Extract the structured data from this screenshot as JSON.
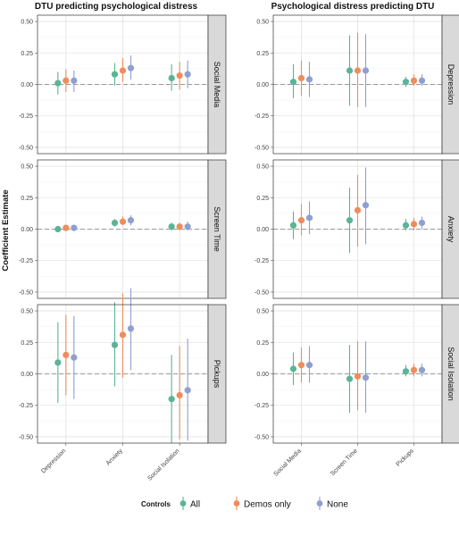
{
  "figure": {
    "y_axis_label": "Coefficient Estimate",
    "legend": {
      "title": "Controls",
      "entries": [
        {
          "label": "All",
          "color": "#5ab497"
        },
        {
          "label": "Demos only",
          "color": "#ef8c5c"
        },
        {
          "label": "None",
          "color": "#8f9fd0"
        }
      ]
    }
  },
  "chart_data": [
    {
      "type": "scatter",
      "subtype": "pointrange",
      "title": "DTU predicting psychological distress",
      "x_categories": [
        "Depression",
        "Anxiety",
        "Social Isolation"
      ],
      "ylim": [
        -0.55,
        0.55
      ],
      "y_ticks": [
        "0.50",
        "0.25",
        "0.00",
        "-0.25",
        "-0.50"
      ],
      "y_tick_values": [
        0.5,
        0.25,
        0,
        -0.25,
        -0.5
      ],
      "facets": [
        {
          "strip": "Social Media",
          "series": [
            {
              "name": "All",
              "points": [
                {
                  "x": "Depression",
                  "y": 0.01,
                  "lo": -0.08,
                  "hi": 0.1
                },
                {
                  "x": "Anxiety",
                  "y": 0.08,
                  "lo": -0.01,
                  "hi": 0.17
                },
                {
                  "x": "Social Isolation",
                  "y": 0.05,
                  "lo": -0.05,
                  "hi": 0.16
                }
              ]
            },
            {
              "name": "Demos only",
              "points": [
                {
                  "x": "Depression",
                  "y": 0.03,
                  "lo": -0.06,
                  "hi": 0.12
                },
                {
                  "x": "Anxiety",
                  "y": 0.11,
                  "lo": 0.02,
                  "hi": 0.21
                },
                {
                  "x": "Social Isolation",
                  "y": 0.07,
                  "lo": -0.04,
                  "hi": 0.18
                }
              ]
            },
            {
              "name": "None",
              "points": [
                {
                  "x": "Depression",
                  "y": 0.03,
                  "lo": -0.06,
                  "hi": 0.11
                },
                {
                  "x": "Anxiety",
                  "y": 0.13,
                  "lo": 0.04,
                  "hi": 0.23
                },
                {
                  "x": "Social Isolation",
                  "y": 0.08,
                  "lo": -0.03,
                  "hi": 0.19
                }
              ]
            }
          ]
        },
        {
          "strip": "Screen Time",
          "series": [
            {
              "name": "All",
              "points": [
                {
                  "x": "Depression",
                  "y": 0.0,
                  "lo": -0.02,
                  "hi": 0.02
                },
                {
                  "x": "Anxiety",
                  "y": 0.05,
                  "lo": 0.02,
                  "hi": 0.08
                },
                {
                  "x": "Social Isolation",
                  "y": 0.02,
                  "lo": -0.01,
                  "hi": 0.05
                }
              ]
            },
            {
              "name": "Demos only",
              "points": [
                {
                  "x": "Depression",
                  "y": 0.01,
                  "lo": -0.01,
                  "hi": 0.03
                },
                {
                  "x": "Anxiety",
                  "y": 0.06,
                  "lo": 0.03,
                  "hi": 0.1
                },
                {
                  "x": "Social Isolation",
                  "y": 0.02,
                  "lo": -0.01,
                  "hi": 0.05
                }
              ]
            },
            {
              "name": "None",
              "points": [
                {
                  "x": "Depression",
                  "y": 0.01,
                  "lo": -0.01,
                  "hi": 0.03
                },
                {
                  "x": "Anxiety",
                  "y": 0.07,
                  "lo": 0.03,
                  "hi": 0.11
                },
                {
                  "x": "Social Isolation",
                  "y": 0.02,
                  "lo": -0.01,
                  "hi": 0.06
                }
              ]
            }
          ]
        },
        {
          "strip": "Pickups",
          "series": [
            {
              "name": "All",
              "points": [
                {
                  "x": "Depression",
                  "y": 0.09,
                  "lo": -0.23,
                  "hi": 0.41
                },
                {
                  "x": "Anxiety",
                  "y": 0.23,
                  "lo": -0.1,
                  "hi": 0.57
                },
                {
                  "x": "Social Isolation",
                  "y": -0.2,
                  "lo": -0.55,
                  "hi": 0.15
                }
              ]
            },
            {
              "name": "Demos only",
              "points": [
                {
                  "x": "Depression",
                  "y": 0.15,
                  "lo": -0.17,
                  "hi": 0.47
                },
                {
                  "x": "Anxiety",
                  "y": 0.31,
                  "lo": -0.03,
                  "hi": 0.64
                },
                {
                  "x": "Social Isolation",
                  "y": -0.17,
                  "lo": -0.52,
                  "hi": 0.22
                }
              ]
            },
            {
              "name": "None",
              "points": [
                {
                  "x": "Depression",
                  "y": 0.13,
                  "lo": -0.2,
                  "hi": 0.46
                },
                {
                  "x": "Anxiety",
                  "y": 0.36,
                  "lo": 0.03,
                  "hi": 0.68
                },
                {
                  "x": "Social Isolation",
                  "y": -0.13,
                  "lo": -0.53,
                  "hi": 0.28
                }
              ]
            }
          ]
        }
      ]
    },
    {
      "type": "scatter",
      "subtype": "pointrange",
      "title": "Psychological distress predicting DTU",
      "x_categories": [
        "Social Media",
        "Screen Time",
        "Pickups"
      ],
      "ylim": [
        -0.55,
        0.55
      ],
      "y_ticks": [
        "0.50",
        "0.25",
        "0.00",
        "-0.25",
        "-0.50"
      ],
      "y_tick_values": [
        0.5,
        0.25,
        0,
        -0.25,
        -0.5
      ],
      "facets": [
        {
          "strip": "Depression",
          "series": [
            {
              "name": "All",
              "points": [
                {
                  "x": "Social Media",
                  "y": 0.02,
                  "lo": -0.11,
                  "hi": 0.16
                },
                {
                  "x": "Screen Time",
                  "y": 0.11,
                  "lo": -0.17,
                  "hi": 0.39
                },
                {
                  "x": "Pickups",
                  "y": 0.02,
                  "lo": -0.02,
                  "hi": 0.06
                }
              ]
            },
            {
              "name": "Demos only",
              "points": [
                {
                  "x": "Social Media",
                  "y": 0.05,
                  "lo": -0.09,
                  "hi": 0.19
                },
                {
                  "x": "Screen Time",
                  "y": 0.11,
                  "lo": -0.18,
                  "hi": 0.41
                },
                {
                  "x": "Pickups",
                  "y": 0.03,
                  "lo": -0.01,
                  "hi": 0.08
                }
              ]
            },
            {
              "name": "None",
              "points": [
                {
                  "x": "Social Media",
                  "y": 0.04,
                  "lo": -0.1,
                  "hi": 0.18
                },
                {
                  "x": "Screen Time",
                  "y": 0.11,
                  "lo": -0.18,
                  "hi": 0.4
                },
                {
                  "x": "Pickups",
                  "y": 0.03,
                  "lo": -0.01,
                  "hi": 0.08
                }
              ]
            }
          ]
        },
        {
          "strip": "Anxiety",
          "series": [
            {
              "name": "All",
              "points": [
                {
                  "x": "Social Media",
                  "y": 0.03,
                  "lo": -0.08,
                  "hi": 0.14
                },
                {
                  "x": "Screen Time",
                  "y": 0.07,
                  "lo": -0.19,
                  "hi": 0.33
                },
                {
                  "x": "Pickups",
                  "y": 0.03,
                  "lo": -0.01,
                  "hi": 0.08
                }
              ]
            },
            {
              "name": "Demos only",
              "points": [
                {
                  "x": "Social Media",
                  "y": 0.07,
                  "lo": -0.05,
                  "hi": 0.2
                },
                {
                  "x": "Screen Time",
                  "y": 0.15,
                  "lo": -0.14,
                  "hi": 0.43
                },
                {
                  "x": "Pickups",
                  "y": 0.04,
                  "lo": -0.01,
                  "hi": 0.09
                }
              ]
            },
            {
              "name": "None",
              "points": [
                {
                  "x": "Social Media",
                  "y": 0.09,
                  "lo": -0.04,
                  "hi": 0.22
                },
                {
                  "x": "Screen Time",
                  "y": 0.19,
                  "lo": -0.12,
                  "hi": 0.49
                },
                {
                  "x": "Pickups",
                  "y": 0.05,
                  "lo": 0.0,
                  "hi": 0.1
                }
              ]
            }
          ]
        },
        {
          "strip": "Social Isolation",
          "series": [
            {
              "name": "All",
              "points": [
                {
                  "x": "Social Media",
                  "y": 0.04,
                  "lo": -0.09,
                  "hi": 0.17
                },
                {
                  "x": "Screen Time",
                  "y": -0.04,
                  "lo": -0.31,
                  "hi": 0.23
                },
                {
                  "x": "Pickups",
                  "y": 0.02,
                  "lo": -0.02,
                  "hi": 0.07
                }
              ]
            },
            {
              "name": "Demos only",
              "points": [
                {
                  "x": "Social Media",
                  "y": 0.07,
                  "lo": -0.07,
                  "hi": 0.21
                },
                {
                  "x": "Screen Time",
                  "y": -0.02,
                  "lo": -0.29,
                  "hi": 0.26
                },
                {
                  "x": "Pickups",
                  "y": 0.03,
                  "lo": -0.02,
                  "hi": 0.08
                }
              ]
            },
            {
              "name": "None",
              "points": [
                {
                  "x": "Social Media",
                  "y": 0.07,
                  "lo": -0.07,
                  "hi": 0.22
                },
                {
                  "x": "Screen Time",
                  "y": -0.03,
                  "lo": -0.31,
                  "hi": 0.26
                },
                {
                  "x": "Pickups",
                  "y": 0.03,
                  "lo": -0.02,
                  "hi": 0.08
                }
              ]
            }
          ]
        }
      ]
    }
  ]
}
